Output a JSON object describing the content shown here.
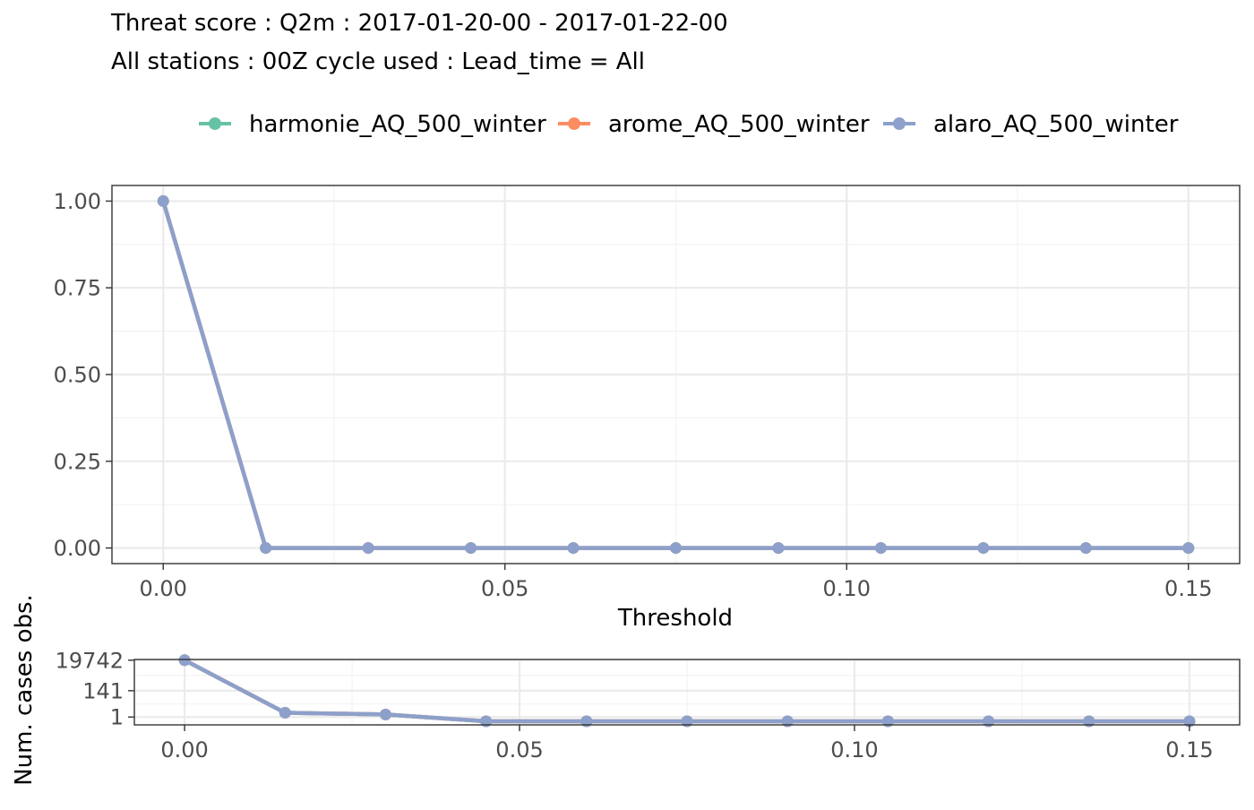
{
  "chart_data": {
    "type": "line",
    "title": "Threat score : Q2m : 2017-01-20-00 - 2017-01-22-00",
    "subtitle": "All stations : 00Z cycle used : Lead_time = All",
    "legend_position": "top",
    "grid": true,
    "series": [
      {
        "name": "harmonie_AQ_500_winter",
        "color": "#66C2A5"
      },
      {
        "name": "arome_AQ_500_winter",
        "color": "#FC8D62"
      },
      {
        "name": "alaro_AQ_500_winter",
        "color": "#8DA0CB"
      }
    ],
    "main": {
      "xlabel": "Threshold",
      "ylabel": "",
      "xlim": [
        -0.0075,
        0.1575
      ],
      "ylim": [
        -0.045,
        1.045
      ],
      "x_ticks": [
        0.0,
        0.05,
        0.1,
        0.15
      ],
      "x_tick_labels": [
        "0.00",
        "0.05",
        "0.10",
        "0.15"
      ],
      "y_ticks": [
        0.0,
        0.25,
        0.5,
        0.75,
        1.0
      ],
      "y_tick_labels": [
        "0.00",
        "0.25",
        "0.50",
        "0.75",
        "1.00"
      ],
      "x": [
        0.0,
        0.015,
        0.03,
        0.045,
        0.06,
        0.075,
        0.09,
        0.105,
        0.12,
        0.135,
        0.15
      ],
      "values": [
        1.0,
        0.0,
        0.0,
        0.0,
        0.0,
        0.0,
        0.0,
        0.0,
        0.0,
        0.0,
        0.0
      ]
    },
    "counts": {
      "ylabel": "Num. cases obs.",
      "scale": "log",
      "xlim": [
        -0.0075,
        0.1575
      ],
      "x_ticks": [
        0.0,
        0.05,
        0.1,
        0.15
      ],
      "x_tick_labels": [
        "0.00",
        "0.05",
        "0.10",
        "0.15"
      ],
      "y_ticks": [
        1,
        141,
        19742
      ],
      "y_tick_labels": [
        "1",
        "141",
        "19742"
      ],
      "x": [
        0.0,
        0.015,
        0.03,
        0.045,
        0.06,
        0.075,
        0.09,
        0.105,
        0.12,
        0.135,
        0.15
      ],
      "values": [
        19742,
        3,
        2,
        0,
        0,
        0,
        0,
        0,
        0,
        0,
        0
      ]
    }
  }
}
